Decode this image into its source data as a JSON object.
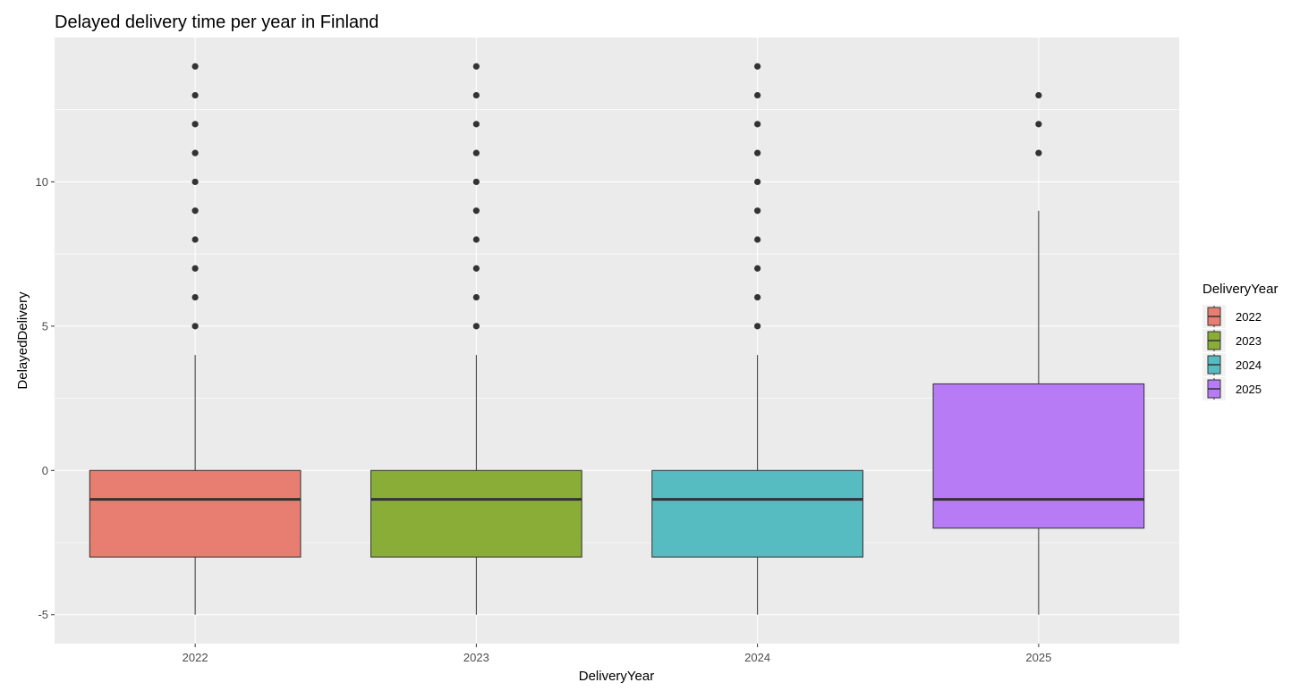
{
  "chart_data": {
    "type": "boxplot",
    "title": "Delayed delivery time per year in Finland",
    "xlabel": "DeliveryYear",
    "ylabel": "DelayedDelivery",
    "ylim": [
      -6,
      15
    ],
    "y_ticks": [
      -5,
      0,
      5,
      10
    ],
    "grid": true,
    "legend": {
      "title": "DeliveryYear",
      "position": "right"
    },
    "categories": [
      "2022",
      "2023",
      "2024",
      "2025"
    ],
    "series": [
      {
        "name": "2022",
        "color": "#E87D72",
        "min": -5,
        "q1": -3,
        "median": -1,
        "q3": 0,
        "max": 4,
        "outliers": [
          5,
          6,
          7,
          8,
          9,
          10,
          11,
          12,
          13,
          14
        ]
      },
      {
        "name": "2023",
        "color": "#8AAD38",
        "min": -5,
        "q1": -3,
        "median": -1,
        "q3": 0,
        "max": 4,
        "outliers": [
          5,
          6,
          7,
          8,
          9,
          10,
          11,
          12,
          13,
          14
        ]
      },
      {
        "name": "2024",
        "color": "#56BCC1",
        "min": -5,
        "q1": -3,
        "median": -1,
        "q3": 0,
        "max": 4,
        "outliers": [
          5,
          6,
          7,
          8,
          9,
          10,
          11,
          12,
          13,
          14
        ]
      },
      {
        "name": "2025",
        "color": "#B77BF5",
        "min": -5,
        "q1": -2,
        "median": -1,
        "q3": 3,
        "max": 9,
        "outliers": [
          11,
          12,
          13
        ]
      }
    ]
  }
}
